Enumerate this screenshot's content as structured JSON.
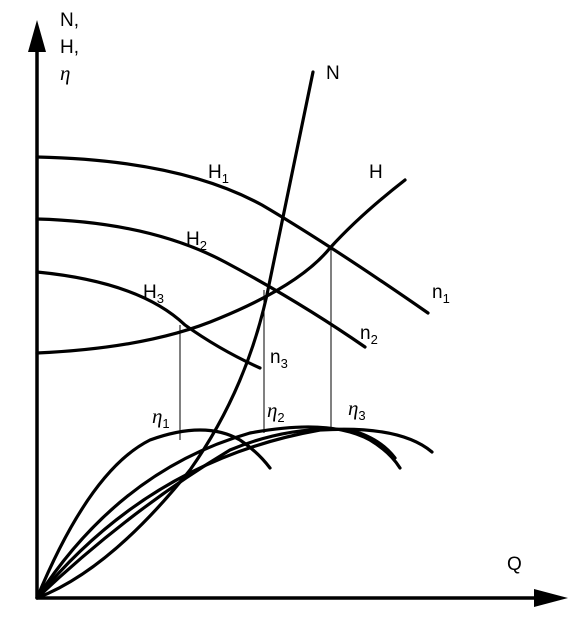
{
  "axes": {
    "y_label_lines": [
      "N,",
      "H,",
      "η"
    ],
    "x_label": "Q"
  },
  "curves": {
    "N": "N",
    "H": "H",
    "H1": {
      "base": "H",
      "sub": "1"
    },
    "H2": {
      "base": "H",
      "sub": "2"
    },
    "H3": {
      "base": "H",
      "sub": "3"
    },
    "n1": {
      "base": "n",
      "sub": "1"
    },
    "n2": {
      "base": "n",
      "sub": "2"
    },
    "n3": {
      "base": "n",
      "sub": "3"
    },
    "eta1": {
      "base": "η",
      "sub": "1"
    },
    "eta2": {
      "base": "η",
      "sub": "2"
    },
    "eta3": {
      "base": "η",
      "sub": "3"
    }
  }
}
